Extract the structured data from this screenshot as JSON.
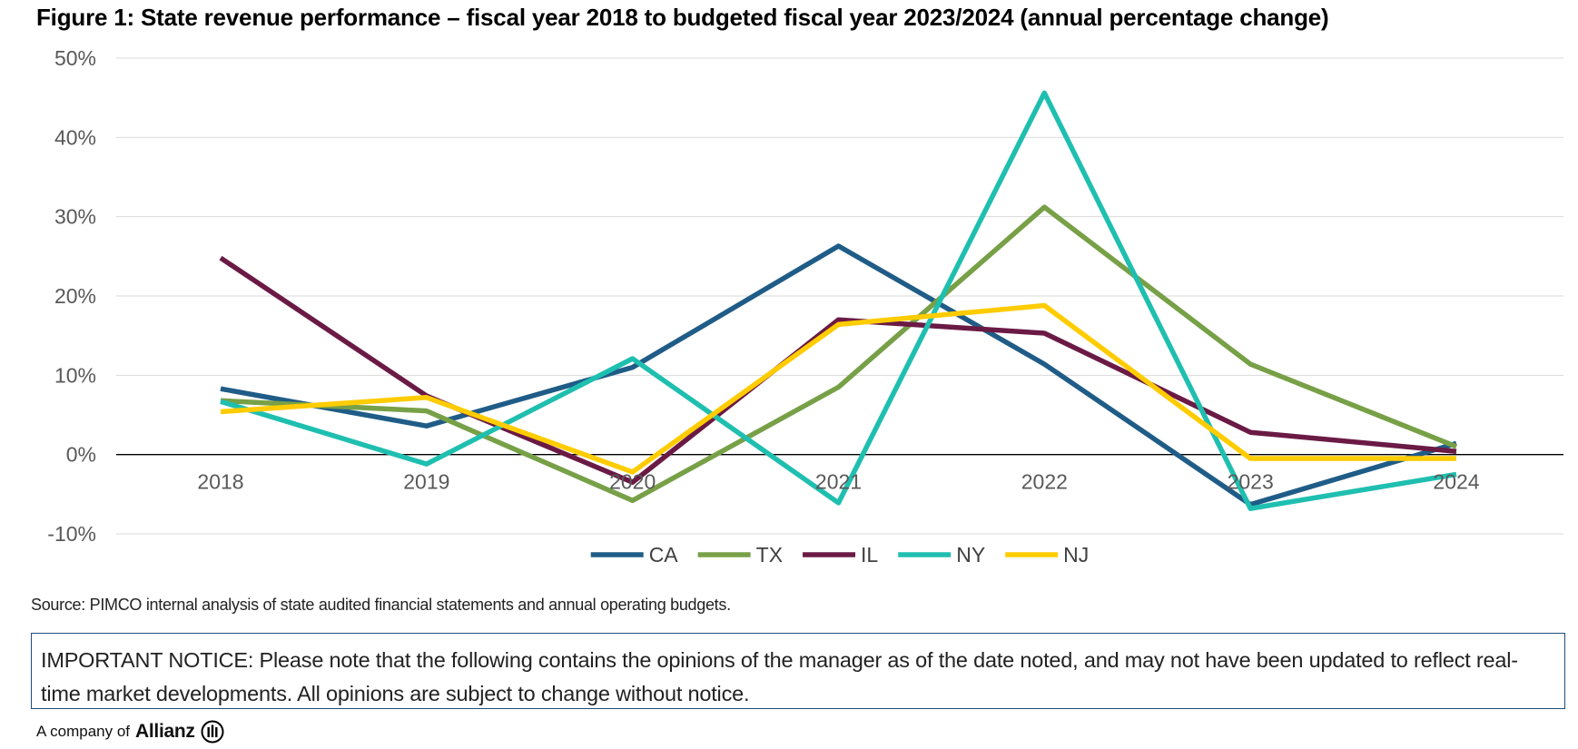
{
  "title": "Figure 1: State revenue performance – fiscal year 2018 to budgeted fiscal year 2023/2024 (annual percentage change)",
  "source": "Source: PIMCO internal analysis of state audited financial statements and annual operating budgets.",
  "notice": "IMPORTANT NOTICE: Please note that the following contains the opinions of the manager as of the date noted, and may not have been updated to reflect real-time market developments. All opinions are subject to change without notice.",
  "footer": {
    "prefix": "A company of",
    "brand": "Allianz",
    "logo_icon": "allianz-eagle-logo"
  },
  "chart_data": {
    "type": "line",
    "title": "Figure 1: State revenue performance – fiscal year 2018 to budgeted fiscal year 2023/2024 (annual percentage change)",
    "categories": [
      "2018",
      "2019",
      "2020",
      "2021",
      "2022",
      "2023",
      "2024"
    ],
    "ylim": [
      -10,
      50
    ],
    "yticks": [
      -10,
      0,
      10,
      20,
      30,
      40,
      50
    ],
    "ytick_labels": [
      "-10%",
      "0%",
      "10%",
      "20%",
      "30%",
      "40%",
      "50%"
    ],
    "grid": true,
    "legend_position": "bottom",
    "series": [
      {
        "name": "CA",
        "color": "#1f5c87",
        "values": [
          8.3,
          3.6,
          11.0,
          26.3,
          11.4,
          -6.3,
          1.4
        ]
      },
      {
        "name": "TX",
        "color": "#77a047",
        "values": [
          6.8,
          5.5,
          -5.8,
          8.5,
          31.2,
          11.4,
          1.0
        ]
      },
      {
        "name": "IL",
        "color": "#6a1a44",
        "values": [
          24.8,
          7.4,
          -3.5,
          17.0,
          15.3,
          2.8,
          0.4
        ]
      },
      {
        "name": "NY",
        "color": "#1fbfb0",
        "values": [
          6.7,
          -1.2,
          12.1,
          -6.1,
          45.6,
          -6.8,
          -2.5
        ]
      },
      {
        "name": "NJ",
        "color": "#ffcc00",
        "values": [
          5.4,
          7.2,
          -2.2,
          16.4,
          18.8,
          -0.5,
          -0.5
        ]
      }
    ]
  }
}
